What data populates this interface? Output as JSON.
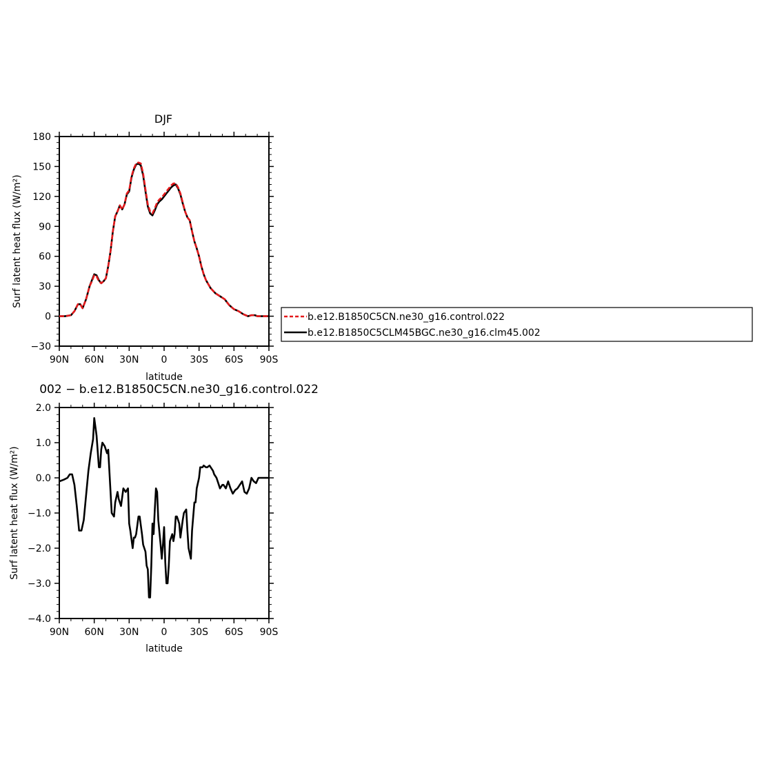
{
  "chart_data": [
    {
      "type": "line",
      "title": "DJF",
      "xlabel": "latitude",
      "ylabel": "Surf latent heat flux (W/m²)",
      "xlim": [
        90,
        -90
      ],
      "ylim": [
        -30,
        180
      ],
      "xticks": [
        90,
        60,
        30,
        0,
        -30,
        -60,
        -90
      ],
      "xtick_labels": [
        "90N",
        "60N",
        "30N",
        "0",
        "30S",
        "60S",
        "90S"
      ],
      "yticks": [
        -30,
        0,
        30,
        60,
        90,
        120,
        150,
        180
      ],
      "ytick_labels": [
        "−30",
        "0",
        "30",
        "60",
        "90",
        "120",
        "150",
        "180"
      ],
      "grid": false,
      "legend": "right",
      "x": [
        90,
        85,
        80,
        77,
        74,
        72,
        70,
        67,
        64,
        62,
        60,
        58,
        56,
        54,
        52,
        50,
        48,
        46,
        44,
        42,
        40,
        38,
        36,
        34,
        32,
        30,
        28,
        26,
        24,
        22,
        20,
        18,
        16,
        14,
        12,
        10,
        8,
        6,
        4,
        2,
        0,
        -2,
        -4,
        -6,
        -8,
        -10,
        -12,
        -14,
        -16,
        -18,
        -20,
        -22,
        -24,
        -26,
        -28,
        -30,
        -32,
        -34,
        -36,
        -38,
        -40,
        -44,
        -48,
        -52,
        -56,
        -60,
        -64,
        -68,
        -72,
        -75,
        -78,
        -80,
        -82,
        -85,
        -88,
        -90
      ],
      "series": [
        {
          "name": "b.e12.B1850C5CN.ne30_g16.control.022",
          "color": "#e41a1c",
          "dash": true,
          "values": [
            0,
            0,
            1,
            5,
            12,
            12,
            8,
            17,
            30,
            35,
            41,
            40,
            35,
            33,
            35,
            38,
            50,
            65,
            85,
            100,
            105,
            111,
            107,
            112,
            123,
            126,
            140,
            148,
            153,
            154,
            153,
            143,
            127,
            112,
            105,
            103,
            108,
            114,
            117,
            119,
            122,
            125,
            128,
            131,
            133,
            133,
            129,
            123,
            114,
            105,
            99,
            96,
            85,
            75,
            68,
            60,
            50,
            42,
            36,
            32,
            28,
            23,
            20,
            17,
            11,
            7,
            5,
            2,
            0,
            1,
            1,
            0,
            0,
            0,
            0,
            0
          ]
        },
        {
          "name": "b.e12.B1850C5CLM45BGC.ne30_g16.clm45.002",
          "color": "#000000",
          "dash": false,
          "values": [
            0,
            0,
            1,
            5,
            12,
            12,
            8,
            17,
            30,
            36,
            42,
            41,
            36,
            33,
            35,
            38,
            50,
            65,
            85,
            100,
            105,
            111,
            107,
            112,
            122,
            125,
            139,
            147,
            152,
            153,
            151,
            141,
            125,
            110,
            103,
            101,
            106,
            112,
            115,
            117,
            120,
            123,
            126,
            129,
            131,
            132,
            128,
            122,
            113,
            105,
            99,
            96,
            85,
            75,
            68,
            60,
            50,
            42,
            36,
            32,
            28,
            23,
            20,
            17,
            11,
            7,
            5,
            2,
            0,
            1,
            1,
            0,
            0,
            0,
            0,
            0
          ]
        }
      ]
    },
    {
      "type": "line",
      "title": "002 − b.e12.B1850C5CN.ne30_g16.control.022",
      "xlabel": "latitude",
      "ylabel": "Surf latent heat flux (W/m²)",
      "xlim": [
        90,
        -90
      ],
      "ylim": [
        -4,
        2
      ],
      "xticks": [
        90,
        60,
        30,
        0,
        -30,
        -60,
        -90
      ],
      "xtick_labels": [
        "90N",
        "60N",
        "30N",
        "0",
        "30S",
        "60S",
        "90S"
      ],
      "yticks": [
        -4,
        -3,
        -2,
        -1,
        0,
        1,
        2
      ],
      "ytick_labels": [
        "−4.0",
        "−3.0",
        "−2.0",
        "−1.0",
        "0.0",
        "1.0",
        "2.0"
      ],
      "grid": false,
      "series": [
        {
          "color": "#000000",
          "x": [
            90,
            86,
            83,
            81,
            79,
            77,
            75,
            73,
            71,
            69,
            67,
            65,
            63,
            61,
            60,
            58,
            56,
            55,
            54,
            53,
            51,
            49,
            48,
            47,
            45,
            43,
            42,
            40,
            39,
            37,
            35,
            33,
            31,
            30,
            29,
            27,
            26,
            25,
            24,
            22,
            21,
            19,
            18,
            16,
            15,
            14,
            13,
            12,
            11,
            10,
            9,
            8,
            7,
            6,
            5,
            3,
            2,
            1,
            0,
            -1,
            -2,
            -3,
            -4,
            -5,
            -7,
            -8,
            -9,
            -10,
            -11,
            -13,
            -14,
            -16,
            -17,
            -19,
            -20,
            -21,
            -23,
            -24,
            -26,
            -27,
            -28,
            -30,
            -31,
            -33,
            -34,
            -36,
            -37,
            -39,
            -40,
            -42,
            -43,
            -45,
            -47,
            -48,
            -50,
            -51,
            -53,
            -55,
            -57,
            -59,
            -61,
            -63,
            -65,
            -67,
            -69,
            -71,
            -73,
            -75,
            -77,
            -79,
            -81,
            -83,
            -85,
            -87,
            -90
          ],
          "values": [
            -0.1,
            -0.05,
            0.0,
            0.1,
            0.1,
            -0.2,
            -0.8,
            -1.5,
            -1.5,
            -1.2,
            -0.5,
            0.2,
            0.7,
            1.1,
            1.7,
            1.2,
            0.3,
            0.3,
            0.8,
            1.0,
            0.9,
            0.7,
            0.8,
            0.2,
            -1.0,
            -1.1,
            -0.7,
            -0.4,
            -0.6,
            -0.8,
            -0.3,
            -0.4,
            -0.3,
            -1.3,
            -1.5,
            -2.0,
            -1.7,
            -1.7,
            -1.6,
            -1.1,
            -1.1,
            -1.6,
            -1.9,
            -2.1,
            -2.5,
            -2.6,
            -3.4,
            -3.4,
            -2.5,
            -1.3,
            -1.6,
            -0.9,
            -0.3,
            -0.4,
            -1.2,
            -1.9,
            -2.3,
            -1.9,
            -1.4,
            -2.4,
            -3.0,
            -3.0,
            -2.5,
            -1.8,
            -1.6,
            -1.8,
            -1.6,
            -1.1,
            -1.1,
            -1.3,
            -1.7,
            -1.2,
            -1.0,
            -0.9,
            -1.5,
            -2.0,
            -2.3,
            -1.5,
            -0.7,
            -0.7,
            -0.3,
            0.0,
            0.3,
            0.3,
            0.35,
            0.3,
            0.3,
            0.35,
            0.3,
            0.2,
            0.1,
            0.0,
            -0.2,
            -0.3,
            -0.2,
            -0.2,
            -0.3,
            -0.1,
            -0.3,
            -0.45,
            -0.35,
            -0.3,
            -0.2,
            -0.1,
            -0.4,
            -0.45,
            -0.3,
            0.0,
            -0.1,
            -0.15,
            0.0,
            0.0,
            0.0,
            0.0,
            0.0
          ]
        }
      ]
    }
  ]
}
